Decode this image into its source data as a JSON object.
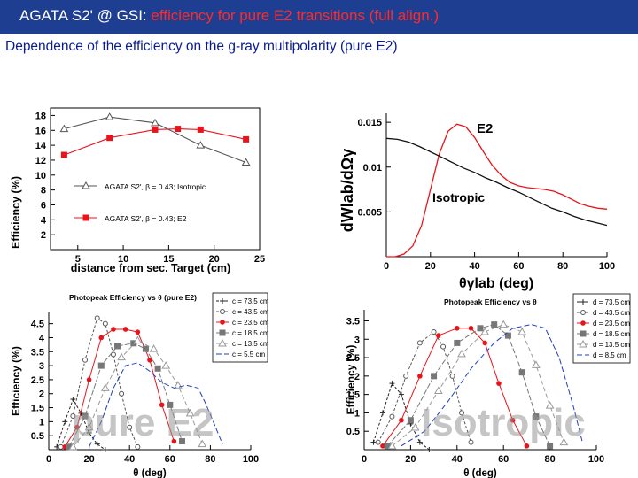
{
  "header": {
    "title_main": "AGATA S2' @ GSI: ",
    "title_highlight": "efficiency for pure E2 transitions (full align.)"
  },
  "subtitle": "Dependence of the efficiency on the g-ray multipolarity (pure E2)",
  "colors": {
    "header_bg": "#1e3f91",
    "highlight": "#ff2a2a",
    "subtitle": "#0a1a90",
    "red_series": "#e8141b"
  },
  "chart_data": [
    {
      "id": "tl",
      "type": "line",
      "title": "",
      "xlabel": "distance from sec. Target (cm)",
      "ylabel": "Efficiency (%)",
      "xlim": [
        2,
        25
      ],
      "ylim": [
        0,
        19
      ],
      "xticks": [
        5,
        10,
        15,
        20,
        25
      ],
      "yticks": [
        2,
        4,
        6,
        8,
        10,
        12,
        14,
        16,
        18
      ],
      "series": [
        {
          "name": "AGATA S2', β = 0.43; Isotropic",
          "color": "#555555",
          "marker": "triangle",
          "x": [
            3.5,
            8.5,
            13.5,
            18.5,
            23.5
          ],
          "y": [
            16.2,
            17.8,
            17.0,
            14.0,
            11.7
          ]
        },
        {
          "name": "AGATA S2', β = 0.43; E2",
          "color": "#e8141b",
          "marker": "square",
          "x": [
            3.5,
            8.5,
            13.5,
            16.0,
            18.5,
            23.5
          ],
          "y": [
            12.7,
            15.0,
            16.1,
            16.2,
            16.1,
            14.8
          ]
        }
      ]
    },
    {
      "id": "tr",
      "type": "line",
      "xlabel": "θγlab (deg)",
      "ylabel": "dWlab/dΩγ",
      "xlim": [
        0,
        100
      ],
      "ylim": [
        0,
        0.016
      ],
      "xticks": [
        0,
        20,
        40,
        60,
        80,
        100
      ],
      "yticks": [
        0.005,
        0.01,
        0.015
      ],
      "ytick_labels": [
        "0.005",
        "0.01",
        "0.015"
      ],
      "annotations": [
        "E2",
        "Isotropic"
      ],
      "series": [
        {
          "name": "E2",
          "color": "#e8141b",
          "x": [
            0,
            4,
            8,
            12,
            16,
            20,
            24,
            28,
            32,
            36,
            40,
            44,
            48,
            52,
            56,
            60,
            64,
            68,
            72,
            76,
            80,
            84,
            88,
            92,
            96,
            100
          ],
          "y": [
            0.0,
            0.0,
            0.0003,
            0.0012,
            0.0035,
            0.0075,
            0.0115,
            0.014,
            0.0148,
            0.0145,
            0.0133,
            0.0117,
            0.0102,
            0.0091,
            0.0083,
            0.0079,
            0.0077,
            0.0076,
            0.0075,
            0.0073,
            0.0069,
            0.0064,
            0.0059,
            0.0056,
            0.0054,
            0.0053
          ]
        },
        {
          "name": "Isotropic",
          "color": "#111111",
          "x": [
            0,
            5,
            10,
            15,
            20,
            25,
            30,
            35,
            40,
            45,
            50,
            55,
            60,
            65,
            70,
            75,
            80,
            85,
            90,
            95,
            100
          ],
          "y": [
            0.0132,
            0.0131,
            0.0128,
            0.0123,
            0.0117,
            0.0111,
            0.0105,
            0.0099,
            0.0094,
            0.0088,
            0.0083,
            0.0077,
            0.0072,
            0.0066,
            0.006,
            0.0054,
            0.005,
            0.0045,
            0.0041,
            0.0038,
            0.0035
          ]
        }
      ]
    },
    {
      "id": "bl",
      "type": "line",
      "title": "Photopeak Efficiency vs θ (pure E2)",
      "xlabel": "θ (deg)",
      "ylabel": "Efficiency (%)",
      "overlay_text": "pure E2",
      "xlim": [
        0,
        100
      ],
      "ylim": [
        0,
        4.9
      ],
      "xticks": [
        0,
        20,
        40,
        60,
        80,
        100
      ],
      "yticks": [
        0.5,
        1,
        1.5,
        2,
        2.5,
        3,
        3.5,
        4,
        4.5
      ],
      "ytick_labels": [
        "0.5",
        "1",
        "1.5",
        "2",
        "2.5",
        "3",
        "3.5",
        "4",
        "4.5"
      ],
      "series": [
        {
          "name": "c = 73.5 cm",
          "color": "#222222",
          "marker": "plus",
          "x": [
            4,
            8,
            12,
            16,
            20,
            24,
            28
          ],
          "y": [
            0.1,
            1.0,
            1.8,
            1.3,
            0.6,
            0.2,
            0.0
          ]
        },
        {
          "name": "c = 43.5 cm",
          "color": "#555555",
          "marker": "circle",
          "x": [
            6,
            12,
            18,
            24,
            28,
            32,
            36,
            40,
            44
          ],
          "y": [
            0.1,
            1.2,
            3.2,
            4.7,
            4.5,
            3.4,
            2.0,
            0.8,
            0.1
          ]
        },
        {
          "name": "c = 23.5 cm",
          "color": "#e8141b",
          "marker": "dot",
          "x": [
            8,
            14,
            20,
            26,
            32,
            38,
            44,
            50,
            56,
            62
          ],
          "y": [
            0.1,
            0.8,
            2.5,
            4.0,
            4.3,
            4.3,
            4.2,
            3.2,
            1.6,
            0.3
          ]
        },
        {
          "name": "c = 18.5 cm",
          "color": "#777777",
          "marker": "square",
          "x": [
            10,
            18,
            26,
            34,
            42,
            48,
            54,
            60,
            66
          ],
          "y": [
            0.1,
            1.2,
            3.0,
            3.7,
            3.8,
            3.6,
            2.9,
            1.6,
            0.3
          ]
        },
        {
          "name": "c = 13.5 cm",
          "color": "#999999",
          "marker": "triangle",
          "x": [
            12,
            20,
            28,
            36,
            44,
            52,
            58,
            64,
            70,
            76
          ],
          "y": [
            0.1,
            0.8,
            2.2,
            3.3,
            3.9,
            3.6,
            3.0,
            2.3,
            1.3,
            0.2
          ]
        },
        {
          "name": "c = 5.5 cm",
          "color": "#1f3fbf",
          "marker": "none",
          "x": [
            20,
            26,
            32,
            38,
            44,
            50,
            56,
            62,
            68,
            74,
            78,
            82,
            86
          ],
          "y": [
            0.1,
            1.0,
            2.2,
            3.0,
            3.1,
            2.8,
            2.4,
            2.2,
            2.3,
            2.2,
            1.6,
            0.9,
            0.2
          ]
        }
      ]
    },
    {
      "id": "br",
      "type": "line",
      "title": "Photopeak Efficiency vs θ",
      "xlabel": "θ (deg)",
      "ylabel": "Efficiency (%)",
      "overlay_text": "Isotropic",
      "xlim": [
        0,
        100
      ],
      "ylim": [
        0,
        3.8
      ],
      "xticks": [
        0,
        20,
        40,
        60,
        80,
        100
      ],
      "yticks": [
        0.5,
        1,
        1.5,
        2,
        2.5,
        3,
        3.5
      ],
      "ytick_labels": [
        "0.5",
        "1",
        "1.5",
        "2",
        "2.5",
        "3",
        "3.5"
      ],
      "series": [
        {
          "name": "d = 73.5 cm",
          "color": "#222222",
          "marker": "plus",
          "x": [
            4,
            8,
            12,
            16,
            20,
            24,
            28
          ],
          "y": [
            0.2,
            1.0,
            1.8,
            1.5,
            0.7,
            0.2,
            0.0
          ]
        },
        {
          "name": "d = 43.5 cm",
          "color": "#555555",
          "marker": "circle",
          "x": [
            6,
            12,
            18,
            24,
            30,
            34,
            38,
            42,
            46
          ],
          "y": [
            0.2,
            0.9,
            2.0,
            2.9,
            3.2,
            2.8,
            2.0,
            1.0,
            0.2
          ]
        },
        {
          "name": "d = 23.5 cm",
          "color": "#e8141b",
          "marker": "dot",
          "x": [
            8,
            16,
            24,
            32,
            40,
            46,
            52,
            58,
            64,
            70
          ],
          "y": [
            0.1,
            0.8,
            2.0,
            3.1,
            3.3,
            3.3,
            2.9,
            1.8,
            0.8,
            0.1
          ]
        },
        {
          "name": "d = 18.5 cm",
          "color": "#777777",
          "marker": "square",
          "x": [
            10,
            20,
            30,
            40,
            50,
            56,
            62,
            68,
            74,
            80
          ],
          "y": [
            0.1,
            0.8,
            2.0,
            2.9,
            3.3,
            3.4,
            3.1,
            2.1,
            0.9,
            0.1
          ]
        },
        {
          "name": "d = 13.5 cm",
          "color": "#999999",
          "marker": "triangle",
          "x": [
            12,
            22,
            32,
            42,
            52,
            60,
            68,
            74,
            80,
            86
          ],
          "y": [
            0.1,
            0.6,
            1.6,
            2.6,
            3.2,
            3.4,
            3.2,
            2.3,
            1.2,
            0.2
          ]
        },
        {
          "name": "d = 8.5 cm",
          "color": "#1f3fbf",
          "marker": "none",
          "x": [
            16,
            26,
            36,
            46,
            56,
            64,
            72,
            78,
            84,
            90,
            94
          ],
          "y": [
            0.1,
            0.5,
            1.3,
            2.2,
            2.9,
            3.3,
            3.4,
            3.3,
            2.5,
            1.2,
            0.2
          ]
        }
      ]
    }
  ]
}
